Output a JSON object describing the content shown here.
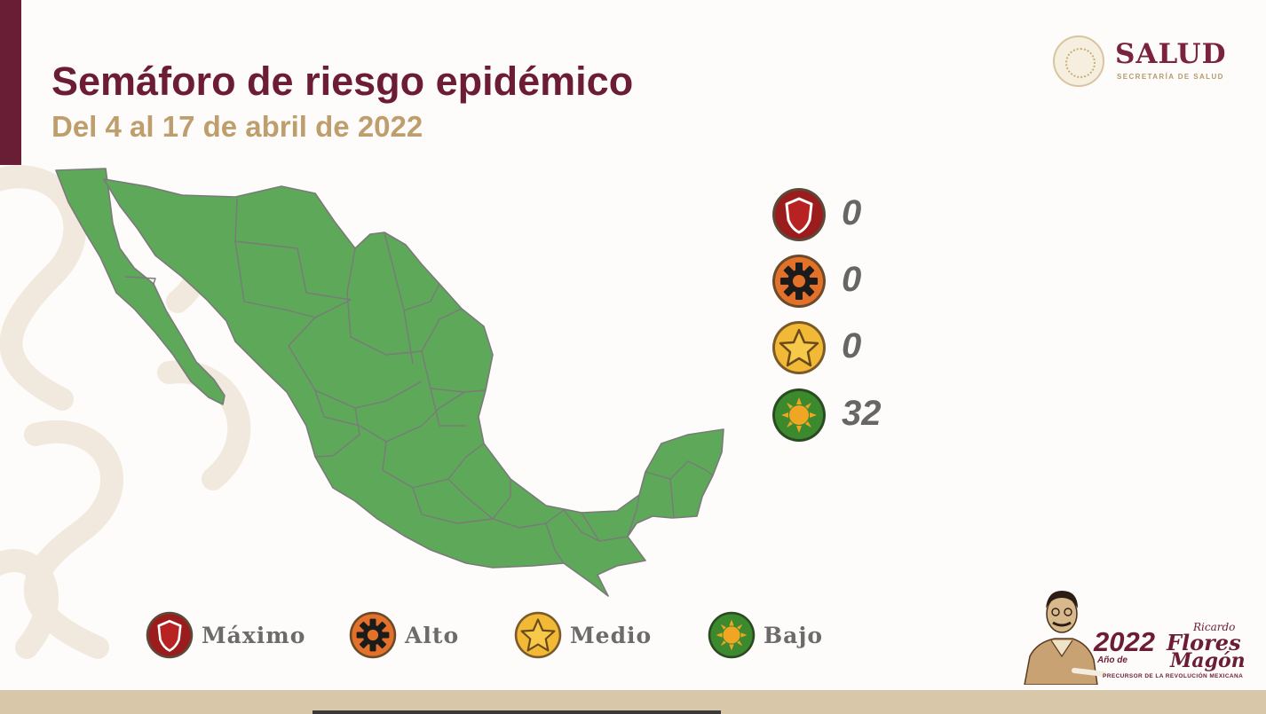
{
  "title": "Semáforo de riesgo epidémico",
  "subtitle": "Del 4 al 17 de abril de 2022",
  "logo": {
    "name": "SALUD",
    "tagline": "SECRETARÍA DE SALUD",
    "seal_text": "ESTADOS UNIDOS MEXICANOS"
  },
  "map": {
    "region": "México",
    "uniform_state_color": "#5ea85a",
    "border_color": "#7a7a7a"
  },
  "counts": [
    {
      "level": "maximo",
      "icon": "shield-icon",
      "color": "#9b1c1c",
      "value": "0"
    },
    {
      "level": "alto",
      "icon": "gear-icon",
      "color": "#e4712a",
      "value": "0"
    },
    {
      "level": "medio",
      "icon": "star-icon",
      "color": "#f2b937",
      "value": "0"
    },
    {
      "level": "bajo",
      "icon": "sun-icon",
      "color": "#3d8a2e",
      "value": "32"
    }
  ],
  "legend": [
    {
      "label": "Máximo",
      "icon": "shield-icon"
    },
    {
      "label": "Alto",
      "icon": "gear-icon"
    },
    {
      "label": "Medio",
      "icon": "star-icon"
    },
    {
      "label": "Bajo",
      "icon": "sun-icon"
    }
  ],
  "brand": {
    "year": "2022",
    "year_prefix": "Año de",
    "name_first": "Ricardo",
    "name_middle": "Flores",
    "name_last": "Magón",
    "tagline": "PRECURSOR DE LA REVOLUCIÓN MEXICANA"
  }
}
